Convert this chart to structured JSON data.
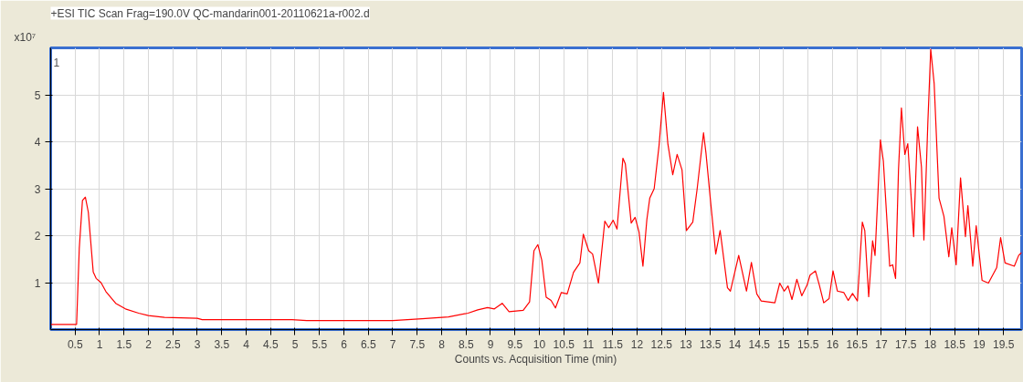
{
  "chart_data": {
    "type": "line",
    "title": "+ESI TIC Scan Frag=190.0V QC-mandarin001-20110621a-r002.d",
    "xlabel": "Counts vs. Acquisition Time (min)",
    "ylabel": "x10⁷",
    "annotations": [
      "1"
    ],
    "x": [
      0,
      0.53,
      0.585,
      0.65,
      0.71,
      0.77,
      0.87,
      0.93,
      1.03,
      1.13,
      1.33,
      1.53,
      1.8,
      2.0,
      2.33,
      3.0,
      3.1,
      4.94,
      5.24,
      7.0,
      7.6,
      8.14,
      8.54,
      8.74,
      8.94,
      9.08,
      9.24,
      9.38,
      9.67,
      9.8,
      9.89,
      9.97,
      10.05,
      10.14,
      10.24,
      10.33,
      10.45,
      10.57,
      10.7,
      10.83,
      10.9,
      11.01,
      11.09,
      11.21,
      11.34,
      11.42,
      11.51,
      11.59,
      11.71,
      11.76,
      11.88,
      11.96,
      12.04,
      12.12,
      12.2,
      12.26,
      12.35,
      12.45,
      12.54,
      12.63,
      12.73,
      12.82,
      12.92,
      13.01,
      13.14,
      13.23,
      13.36,
      13.41,
      13.51,
      13.61,
      13.7,
      13.85,
      13.91,
      14.08,
      14.24,
      14.34,
      14.45,
      14.54,
      14.82,
      14.92,
      15.01,
      15.09,
      15.17,
      15.27,
      15.37,
      15.48,
      15.54,
      15.65,
      15.73,
      15.82,
      15.93,
      16.01,
      16.1,
      16.23,
      16.32,
      16.41,
      16.51,
      16.61,
      16.66,
      16.74,
      16.82,
      16.87,
      16.98,
      17.04,
      17.17,
      17.23,
      17.29,
      17.35,
      17.41,
      17.48,
      17.54,
      17.66,
      17.74,
      17.82,
      17.87,
      17.95,
      18.01,
      18.08,
      18.18,
      18.28,
      18.38,
      18.44,
      18.53,
      18.62,
      18.72,
      18.77,
      18.87,
      18.94,
      19.06,
      19.19,
      19.36,
      19.44,
      19.53,
      19.72,
      19.81,
      19.87
    ],
    "series": [
      {
        "color": "#ff0000",
        "values": [
          0.11,
          0.11,
          1.73,
          2.75,
          2.82,
          2.5,
          1.23,
          1.09,
          1.0,
          0.81,
          0.56,
          0.44,
          0.35,
          0.3,
          0.26,
          0.24,
          0.21,
          0.21,
          0.19,
          0.19,
          0.23,
          0.27,
          0.35,
          0.42,
          0.47,
          0.44,
          0.56,
          0.38,
          0.41,
          0.59,
          1.68,
          1.81,
          1.48,
          0.69,
          0.62,
          0.46,
          0.79,
          0.76,
          1.22,
          1.42,
          2.03,
          1.68,
          1.61,
          0.99,
          2.31,
          2.17,
          2.33,
          2.14,
          3.65,
          3.53,
          2.27,
          2.39,
          2.08,
          1.35,
          2.34,
          2.8,
          3.0,
          3.92,
          5.05,
          3.96,
          3.3,
          3.73,
          3.4,
          2.11,
          2.29,
          3.0,
          4.19,
          3.76,
          2.67,
          1.61,
          2.11,
          0.89,
          0.82,
          1.58,
          0.82,
          1.43,
          0.76,
          0.61,
          0.57,
          0.99,
          0.82,
          0.93,
          0.64,
          1.07,
          0.72,
          0.95,
          1.16,
          1.25,
          0.95,
          0.57,
          0.66,
          1.25,
          0.82,
          0.79,
          0.62,
          0.77,
          0.61,
          2.29,
          2.11,
          0.7,
          1.89,
          1.58,
          4.04,
          3.59,
          1.35,
          1.38,
          1.09,
          3.4,
          4.72,
          3.73,
          3.96,
          1.98,
          4.32,
          3.46,
          1.91,
          4.39,
          5.97,
          5.24,
          2.8,
          2.41,
          1.55,
          2.17,
          1.38,
          3.23,
          1.98,
          2.64,
          1.35,
          2.21,
          1.05,
          0.99,
          1.32,
          1.96,
          1.42,
          1.35,
          1.58,
          1.64
        ]
      }
    ],
    "xlim": [
      0,
      19.87
    ],
    "ylim": [
      0,
      6
    ],
    "xticks": [
      0.5,
      1,
      1.5,
      2,
      2.5,
      3,
      3.5,
      4,
      4.5,
      5,
      5.5,
      6,
      6.5,
      7,
      7.5,
      8,
      8.5,
      9,
      9.5,
      10,
      10.5,
      11,
      11.5,
      12,
      12.5,
      13,
      13.5,
      14,
      14.5,
      15,
      15.5,
      16,
      16.5,
      17,
      17.5,
      18,
      18.5,
      19,
      19.5
    ],
    "yticks": [
      1,
      2,
      3,
      4,
      5
    ],
    "grid": true,
    "marker": "none",
    "line_style": "solid"
  }
}
